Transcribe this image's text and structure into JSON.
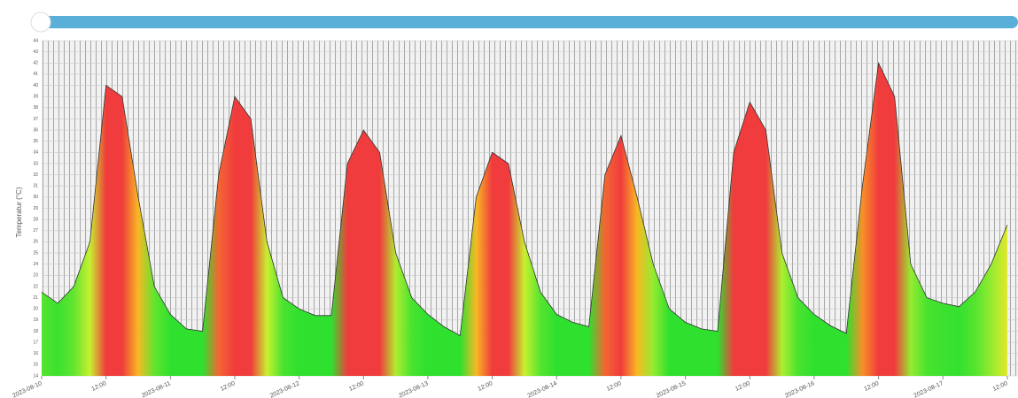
{
  "chart_data": {
    "type": "area",
    "y_label": "Temperatur (°C)",
    "x": [
      0,
      3,
      6,
      9,
      12,
      15,
      18,
      21,
      24,
      27,
      30,
      33,
      36,
      39,
      42,
      45,
      48,
      51,
      54,
      57,
      60,
      63,
      66,
      69,
      72,
      75,
      78,
      81,
      84,
      87,
      90,
      93,
      96,
      99,
      102,
      105,
      108,
      111,
      114,
      117,
      120,
      123,
      126,
      129,
      132,
      135,
      138,
      141,
      144,
      147,
      150,
      153,
      156,
      159,
      162,
      165,
      168,
      171,
      174,
      177,
      180
    ],
    "values": [
      21.5,
      20.5,
      22,
      26,
      40,
      39,
      30,
      22,
      19.5,
      18.2,
      18,
      32,
      39,
      37,
      26,
      21,
      20,
      19.4,
      19.4,
      33,
      36,
      34,
      25,
      21,
      19.5,
      18.4,
      17.6,
      30,
      34,
      33,
      26,
      21.5,
      19.5,
      18.8,
      18.4,
      32,
      35.5,
      30,
      24,
      20,
      18.8,
      18.2,
      18,
      34,
      38.5,
      36,
      25,
      21,
      19.5,
      18.5,
      17.8,
      31,
      42,
      39,
      24,
      21,
      20.5,
      20.2,
      21.5,
      24,
      27.5
    ],
    "color_scale": [
      {
        "value": 20,
        "color": "#2fe02f"
      },
      {
        "value": 26,
        "color": "#c8f030"
      },
      {
        "value": 29,
        "color": "#f8e020"
      },
      {
        "value": 31,
        "color": "#f89028"
      },
      {
        "value": 33,
        "color": "#f03c3c"
      }
    ],
    "line_color": "#333333",
    "xlim": [
      0,
      182
    ],
    "ylim": [
      14,
      44
    ],
    "yticks": [
      14,
      15,
      16,
      17,
      18,
      19,
      20,
      21,
      22,
      23,
      24,
      25,
      26,
      27,
      28,
      29,
      30,
      31,
      32,
      33,
      34,
      35,
      36,
      37,
      38,
      39,
      40,
      41,
      42,
      43,
      44
    ],
    "xticks": [
      {
        "value": 0,
        "label": "2023-08-10"
      },
      {
        "value": 12,
        "label": "12:00"
      },
      {
        "value": 24,
        "label": "2023-08-11"
      },
      {
        "value": 36,
        "label": "12:00"
      },
      {
        "value": 48,
        "label": "2023-08-12"
      },
      {
        "value": 60,
        "label": "12:00"
      },
      {
        "value": 72,
        "label": "2023-08-13"
      },
      {
        "value": 84,
        "label": "12:00"
      },
      {
        "value": 96,
        "label": "2023-08-14"
      },
      {
        "value": 108,
        "label": "12:00"
      },
      {
        "value": 120,
        "label": "2023-08-15"
      },
      {
        "value": 132,
        "label": "12:00"
      },
      {
        "value": 144,
        "label": "2023-08-16"
      },
      {
        "value": 156,
        "label": "12:00"
      },
      {
        "value": 168,
        "label": "2023-08-17"
      },
      {
        "value": 180,
        "label": "12:00"
      }
    ],
    "grid": true
  }
}
